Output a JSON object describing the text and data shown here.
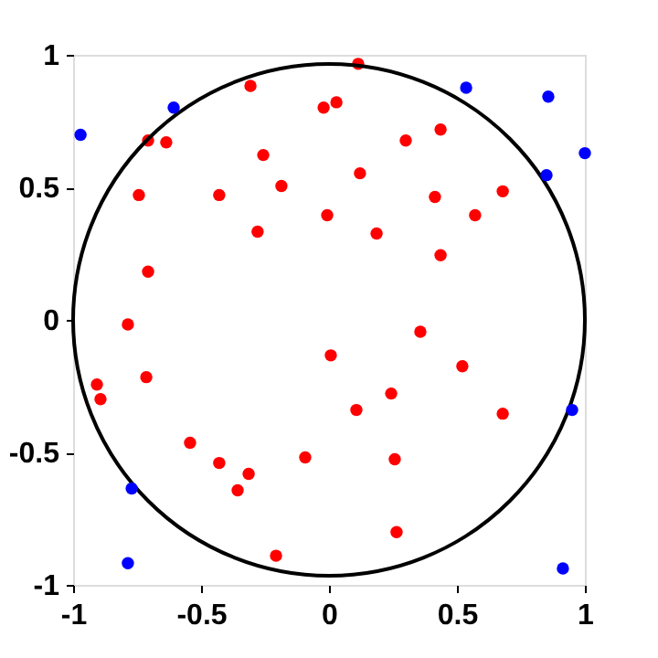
{
  "chart_data": {
    "type": "scatter",
    "xlim": [
      -1,
      1
    ],
    "ylim": [
      -1,
      1
    ],
    "xticks": [
      -1,
      -0.5,
      0,
      0.5,
      1
    ],
    "yticks": [
      -1,
      -0.5,
      0,
      0.5,
      1
    ],
    "grid": false,
    "legend": false,
    "marker": "circle",
    "series": [
      {
        "color": "#ff0000",
        "x": [
          -0.307,
          -0.021,
          0.029,
          -0.707,
          -0.636,
          -0.257,
          -0.186,
          -0.743,
          -0.429,
          -0.007,
          -0.279,
          -0.707,
          -0.786,
          0.114,
          0.3,
          0.436,
          0.121,
          0.414,
          0.679,
          0.571,
          0.186,
          0.436,
          0.357,
          0.007,
          -0.907,
          -0.893,
          -0.714,
          -0.543,
          -0.429,
          -0.314,
          -0.357,
          -0.093,
          -0.207,
          0.521,
          0.243,
          0.107,
          0.679,
          0.257,
          0.264
        ],
        "values": [
          0.883,
          0.801,
          0.821,
          0.677,
          0.67,
          0.622,
          0.505,
          0.471,
          0.471,
          0.395,
          0.333,
          0.182,
          -0.017,
          0.966,
          0.677,
          0.718,
          0.553,
          0.464,
          0.485,
          0.395,
          0.326,
          0.244,
          -0.045,
          -0.134,
          -0.244,
          -0.299,
          -0.216,
          -0.464,
          -0.54,
          -0.581,
          -0.643,
          -0.519,
          -0.89,
          -0.175,
          -0.278,
          -0.34,
          -0.354,
          -0.526,
          -0.801
        ]
      },
      {
        "color": "#0000ff",
        "x": [
          -0.971,
          -0.607,
          0.536,
          0.857,
          1.0,
          0.85,
          0.95,
          -0.771,
          -0.786,
          0.914
        ],
        "values": [
          0.698,
          0.801,
          0.876,
          0.842,
          0.629,
          0.546,
          -0.34,
          -0.636,
          -0.918,
          -0.938
        ]
      }
    ]
  }
}
